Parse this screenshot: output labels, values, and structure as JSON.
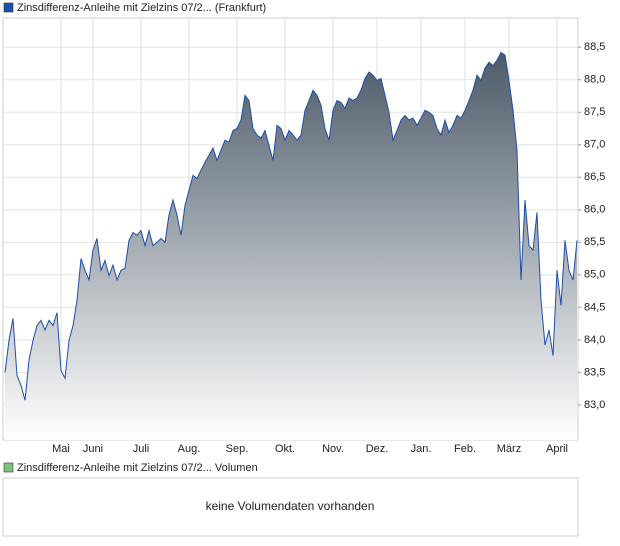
{
  "chart_data": [
    {
      "type": "area",
      "series": [
        {
          "name": "Zinsdifferenz-Anleihe mit Zielzins 07/2... (Frankfurt)",
          "color": "#1f4fa8",
          "values": [
            83.5,
            83.99,
            84.33,
            83.45,
            83.3,
            83.07,
            83.69,
            83.99,
            84.22,
            84.3,
            84.15,
            84.3,
            84.22,
            84.42,
            83.53,
            83.41,
            83.99,
            84.22,
            84.61,
            85.25,
            85.07,
            84.92,
            85.38,
            85.56,
            85.07,
            85.22,
            84.99,
            85.15,
            84.92,
            85.07,
            85.1,
            85.53,
            85.65,
            85.61,
            85.68,
            85.45,
            85.68,
            85.45,
            85.5,
            85.56,
            85.5,
            85.92,
            86.15,
            85.92,
            85.61,
            86.07,
            86.3,
            86.53,
            86.48,
            86.61,
            86.73,
            86.84,
            86.95,
            86.76,
            86.92,
            87.07,
            87.04,
            87.22,
            87.25,
            87.38,
            87.76,
            87.68,
            87.25,
            87.15,
            87.1,
            87.22,
            86.99,
            86.76,
            87.3,
            87.25,
            87.07,
            87.22,
            87.15,
            87.07,
            87.15,
            87.53,
            87.68,
            87.84,
            87.76,
            87.61,
            87.25,
            87.07,
            87.53,
            87.68,
            87.65,
            87.56,
            87.72,
            87.68,
            87.72,
            87.84,
            88.02,
            88.12,
            88.07,
            87.99,
            88.02,
            87.76,
            87.5,
            87.07,
            87.22,
            87.38,
            87.45,
            87.38,
            87.41,
            87.3,
            87.41,
            87.53,
            87.5,
            87.45,
            87.25,
            87.15,
            87.38,
            87.19,
            87.3,
            87.45,
            87.41,
            87.53,
            87.68,
            87.84,
            88.07,
            87.99,
            88.18,
            88.27,
            88.22,
            88.3,
            88.42,
            88.38,
            87.99,
            87.53,
            86.92,
            84.92,
            86.15,
            85.45,
            85.38,
            85.96,
            84.61,
            83.92,
            84.15,
            83.76,
            85.07,
            84.53,
            85.53,
            85.07,
            84.92,
            85.53
          ]
        }
      ],
      "categories": [
        null,
        null,
        null,
        null,
        null,
        null,
        null,
        null,
        null,
        null,
        null,
        null,
        null,
        null,
        "Mai",
        null,
        null,
        null,
        null,
        null,
        null,
        null,
        "Juni",
        null,
        null,
        null,
        null,
        null,
        null,
        null,
        null,
        null,
        null,
        null,
        "Juli",
        null,
        null,
        null,
        null,
        null,
        null,
        null,
        null,
        null,
        null,
        null,
        "Aug.",
        null,
        null,
        null,
        null,
        null,
        null,
        null,
        null,
        null,
        null,
        null,
        "Sep.",
        null,
        null,
        null,
        null,
        null,
        null,
        null,
        null,
        null,
        null,
        null,
        "Okt.",
        null,
        null,
        null,
        null,
        null,
        null,
        null,
        null,
        null,
        null,
        null,
        "Nov.",
        null,
        null,
        null,
        null,
        null,
        null,
        null,
        null,
        null,
        null,
        "Dez.",
        null,
        null,
        null,
        null,
        null,
        null,
        null,
        null,
        null,
        null,
        "Jan.",
        null,
        null,
        null,
        null,
        null,
        null,
        null,
        null,
        null,
        null,
        "Feb.",
        null,
        null,
        null,
        null,
        null,
        null,
        null,
        null,
        null,
        null,
        "März",
        null,
        null,
        null,
        null,
        null,
        null,
        null,
        null,
        null,
        null,
        null,
        "April",
        null,
        null,
        null,
        null,
        null
      ],
      "ylim": [
        82.46,
        88.95
      ],
      "yticks": [
        {
          "value": 83,
          "label": "83,0"
        },
        {
          "value": 83.5,
          "label": "83,5"
        },
        {
          "value": 84,
          "label": "84,0"
        },
        {
          "value": 84.5,
          "label": "84,5"
        },
        {
          "value": 85,
          "label": "85,0"
        },
        {
          "value": 85.5,
          "label": "85,5"
        },
        {
          "value": 86,
          "label": "86,0"
        },
        {
          "value": 86.5,
          "label": "86,5"
        },
        {
          "value": 87,
          "label": "87,0"
        },
        {
          "value": 87.5,
          "label": "87,5"
        },
        {
          "value": 88,
          "label": "88,0"
        },
        {
          "value": 88.5,
          "label": "88,5"
        }
      ],
      "grid": true
    },
    {
      "type": "bar",
      "series": [
        {
          "name": "Zinsdifferenz-Anleihe mit Zielzins 07/2... Volumen",
          "color": "#7cc47c",
          "values": []
        }
      ],
      "message": "keine Volumendaten vorhanden"
    }
  ]
}
